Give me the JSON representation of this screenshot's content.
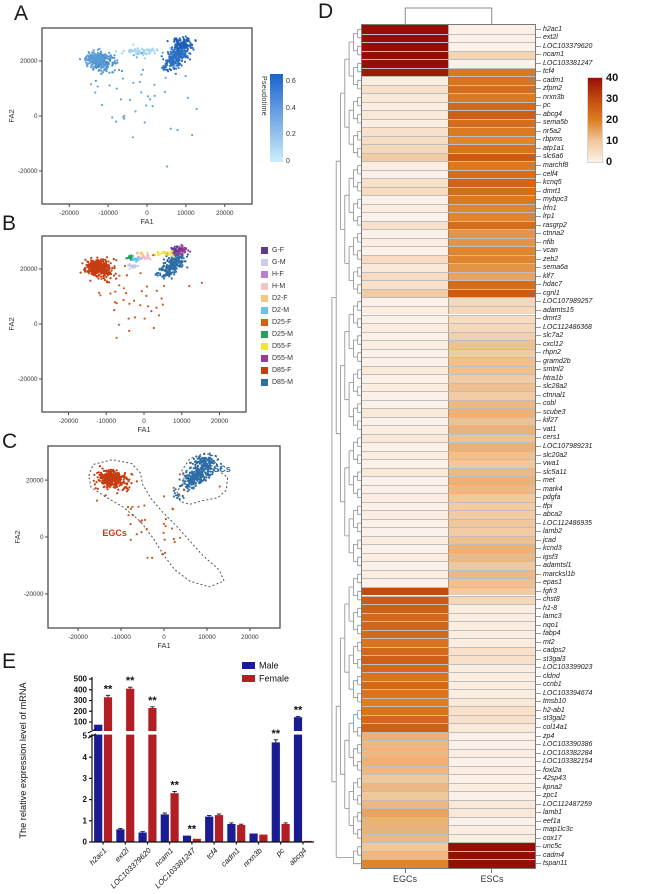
{
  "panels": {
    "A": {
      "label": "A"
    },
    "B": {
      "label": "B"
    },
    "C": {
      "label": "C"
    },
    "D": {
      "label": "D"
    },
    "E": {
      "label": "E"
    }
  },
  "chart_data": [
    {
      "id": "A",
      "type": "scatter",
      "title": "",
      "xlabel": "FA1",
      "ylabel": "FA2",
      "xlim": [
        -27000,
        27000
      ],
      "ylim": [
        -32000,
        32000
      ],
      "xticks": [
        -20000,
        -10000,
        0,
        10000,
        20000
      ],
      "yticks": [
        -20000,
        0,
        20000
      ],
      "seed": 7,
      "colorbar": {
        "title": "Pseudotime",
        "ticks": [
          "0.6",
          "0.4",
          "0.2",
          "0"
        ],
        "tick_values": [
          0.6,
          0.4,
          0.2,
          0
        ],
        "domain": [
          0,
          0.66
        ],
        "top": "#1a63cc",
        "bottom": "#cdeefb"
      },
      "clusters": [
        {
          "cx": -12500,
          "cy": 20500,
          "sx": 1500,
          "sy": 1300,
          "n": 320,
          "color": "#5b9bd5"
        },
        {
          "cx": -10500,
          "cy": 18200,
          "sx": 2000,
          "sy": 1500,
          "n": 45,
          "color": "#4a90d0"
        },
        {
          "cx": 7800,
          "cy": 21500,
          "sx": 1300,
          "sy": 2400,
          "slant": 0.45,
          "n": 240,
          "color": "#2a6fc2"
        },
        {
          "cx": 9200,
          "cy": 26300,
          "sx": 1400,
          "sy": 1100,
          "n": 90,
          "color": "#1d5fb5"
        },
        {
          "cx": -1500,
          "cy": 23400,
          "sx": 2200,
          "sy": 750,
          "n": 55,
          "color": "#9fd4f0"
        },
        {
          "cx": -2500,
          "cy": 7000,
          "sx": 6000,
          "sy": 8000,
          "n": 42,
          "color": "#5fa8e0"
        }
      ]
    },
    {
      "id": "B",
      "type": "scatter",
      "xlabel": "FA1",
      "ylabel": "FA2",
      "xlim": [
        -27000,
        27000
      ],
      "ylim": [
        -32000,
        32000
      ],
      "xticks": [
        -20000,
        -10000,
        0,
        10000,
        20000
      ],
      "yticks": [
        -20000,
        0,
        20000
      ],
      "seed": 11,
      "legend": [
        {
          "label": "G-F",
          "color": "#5c3b8f"
        },
        {
          "label": "G-M",
          "color": "#cfcbe6"
        },
        {
          "label": "H-F",
          "color": "#bd7ad6"
        },
        {
          "label": "H-M",
          "color": "#f2c4c4"
        },
        {
          "label": "D2-F",
          "color": "#f3c77f"
        },
        {
          "label": "D2-M",
          "color": "#66c5ef"
        },
        {
          "label": "D25-F",
          "color": "#d95f0e"
        },
        {
          "label": "D25-M",
          "color": "#28a05a"
        },
        {
          "label": "D55-F",
          "color": "#f2e338"
        },
        {
          "label": "D55-M",
          "color": "#9c3a98"
        },
        {
          "label": "D85-F",
          "color": "#c63d12"
        },
        {
          "label": "D85-M",
          "color": "#2e6da4"
        }
      ],
      "clusters": [
        {
          "cx": -12500,
          "cy": 20500,
          "sx": 1500,
          "sy": 1300,
          "n": 320,
          "color": "#c63d12"
        },
        {
          "cx": -10500,
          "cy": 18200,
          "sx": 2000,
          "sy": 1500,
          "n": 45,
          "color": "#c63d12"
        },
        {
          "cx": 7800,
          "cy": 21500,
          "sx": 1300,
          "sy": 2400,
          "slant": 0.45,
          "n": 240,
          "color": "#2e6da4"
        },
        {
          "cx": 9300,
          "cy": 26700,
          "sx": 1200,
          "sy": 800,
          "n": 55,
          "color": "#9c3a98"
        },
        {
          "cx": 8300,
          "cy": 27200,
          "sx": 900,
          "sy": 500,
          "n": 15,
          "color": "#5c3b8f"
        },
        {
          "cx": 5300,
          "cy": 25600,
          "sx": 1400,
          "sy": 650,
          "n": 22,
          "color": "#f2e338"
        },
        {
          "cx": -3600,
          "cy": 24300,
          "sx": 450,
          "sy": 350,
          "n": 14,
          "color": "#28a05a"
        },
        {
          "cx": -1900,
          "cy": 23700,
          "sx": 800,
          "sy": 400,
          "n": 22,
          "color": "#66c5ef"
        },
        {
          "cx": 300,
          "cy": 24500,
          "sx": 800,
          "sy": 420,
          "n": 22,
          "color": "#f0bac6"
        },
        {
          "cx": -2800,
          "cy": 20900,
          "sx": 800,
          "sy": 420,
          "n": 20,
          "color": "#c9c2e9"
        },
        {
          "cx": -700,
          "cy": 25700,
          "sx": 600,
          "sy": 300,
          "n": 10,
          "color": "#f3c77f"
        },
        {
          "cx": -2500,
          "cy": 7000,
          "sx": 6000,
          "sy": 8000,
          "n": 40,
          "color": "#d1561c"
        }
      ]
    },
    {
      "id": "C",
      "type": "scatter",
      "xlabel": "FA1",
      "ylabel": "FA2",
      "xlim": [
        -27000,
        27000
      ],
      "ylim": [
        -32000,
        32000
      ],
      "xticks": [
        -20000,
        -10000,
        0,
        10000,
        20000
      ],
      "yticks": [
        -20000,
        0,
        20000
      ],
      "seed": 23,
      "clusters": [
        {
          "cx": -12500,
          "cy": 20500,
          "sx": 1500,
          "sy": 1300,
          "n": 320,
          "color": "#c63d12"
        },
        {
          "cx": -10500,
          "cy": 18200,
          "sx": 2000,
          "sy": 1500,
          "n": 45,
          "color": "#c63d12"
        },
        {
          "cx": 7800,
          "cy": 21500,
          "sx": 1300,
          "sy": 2400,
          "slant": 0.45,
          "n": 240,
          "color": "#2e6da4"
        },
        {
          "cx": 9200,
          "cy": 26300,
          "sx": 1400,
          "sy": 1100,
          "n": 80,
          "color": "#2e6da4"
        },
        {
          "cx": 4000,
          "cy": 13500,
          "sx": 1500,
          "sy": 1200,
          "n": 8,
          "color": "#2e6da4"
        },
        {
          "cx": -2500,
          "cy": 7000,
          "sx": 6000,
          "sy": 8000,
          "n": 40,
          "color": "#d1561c"
        }
      ],
      "outlines": [
        {
          "name": "EGCs-outline",
          "points": [
            [
              -17500,
              21500
            ],
            [
              -16500,
              25500
            ],
            [
              -12000,
              27200
            ],
            [
              -7500,
              25800
            ],
            [
              -5500,
              22500
            ],
            [
              -5000,
              18500
            ],
            [
              -3000,
              13500
            ],
            [
              -500,
              9000
            ],
            [
              2500,
              4500
            ],
            [
              5500,
              -500
            ],
            [
              9000,
              -6500
            ],
            [
              12800,
              -11500
            ],
            [
              14000,
              -15500
            ],
            [
              10500,
              -17500
            ],
            [
              6000,
              -15500
            ],
            [
              2500,
              -11500
            ],
            [
              0,
              -6500
            ],
            [
              -2500,
              -500
            ],
            [
              -5500,
              5500
            ],
            [
              -9500,
              10500
            ],
            [
              -13500,
              14000
            ],
            [
              -17000,
              17500
            ]
          ]
        },
        {
          "name": "ESCs-outline",
          "points": [
            [
              3800,
              12500
            ],
            [
              3000,
              16000
            ],
            [
              4800,
              19500
            ],
            [
              4200,
              23500
            ],
            [
              6000,
              27500
            ],
            [
              9500,
              29500
            ],
            [
              12500,
              28000
            ],
            [
              12000,
              24000
            ],
            [
              14800,
              21000
            ],
            [
              14500,
              16500
            ],
            [
              12500,
              13800
            ],
            [
              9000,
              12800
            ],
            [
              6000,
              11500
            ]
          ]
        }
      ],
      "annotations": [
        {
          "text": "EGCs",
          "x": -11500,
          "y": 300,
          "color": "#c63d12"
        },
        {
          "text": "ESCs",
          "x": 12800,
          "y": 22800,
          "color": "#2e6da4"
        }
      ]
    },
    {
      "id": "D",
      "type": "heatmap",
      "columns": [
        "EGCs",
        "ESCs"
      ],
      "scale": {
        "ticks": [
          40,
          30,
          20,
          10,
          0
        ],
        "stops": [
          [
            0,
            "#fcf1e8"
          ],
          [
            10,
            "#f1c79c"
          ],
          [
            20,
            "#dd7e22"
          ],
          [
            30,
            "#c24a0e"
          ],
          [
            40,
            "#960f06"
          ]
        ]
      },
      "genes": [
        [
          "h2ac1",
          40,
          0
        ],
        [
          "ext2l",
          40,
          0
        ],
        [
          "LOC103379620",
          40,
          0
        ],
        [
          "ncam1",
          40,
          7
        ],
        [
          "LOC103381247",
          40,
          0
        ],
        [
          "tcf4",
          38,
          21
        ],
        [
          "cadm1",
          1,
          22
        ],
        [
          "zfpm2",
          4,
          23
        ],
        [
          "nrxn3b",
          2,
          21
        ],
        [
          "pc",
          1,
          24
        ],
        [
          "abcg4",
          2,
          26
        ],
        [
          "sema5b",
          1,
          23
        ],
        [
          "nr5a2",
          4,
          21
        ],
        [
          "rbpms",
          5,
          19
        ],
        [
          "atp1a1",
          6,
          22
        ],
        [
          "slc6a6",
          9,
          27
        ],
        [
          "marchf8",
          1,
          21
        ],
        [
          "celf4",
          0,
          23
        ],
        [
          "kcnq5",
          4,
          25
        ],
        [
          "dmrt1",
          5,
          23
        ],
        [
          "mybpc3",
          0,
          21
        ],
        [
          "lrfn1",
          1,
          19
        ],
        [
          "lrp1",
          0,
          19
        ],
        [
          "rasgrp2",
          4,
          23
        ],
        [
          "ctnna2",
          0,
          17
        ],
        [
          "nfib",
          1,
          17
        ],
        [
          "vcan",
          0,
          19
        ],
        [
          "zeb2",
          5,
          19
        ],
        [
          "sema6a",
          2,
          17
        ],
        [
          "klf7",
          5,
          15
        ],
        [
          "hdac7",
          4,
          23
        ],
        [
          "cgnl1",
          9,
          27
        ],
        [
          "LOC107989257",
          0,
          6
        ],
        [
          "adamts15",
          1,
          6
        ],
        [
          "dmrt3",
          0,
          5
        ],
        [
          "LOC112486368",
          1,
          6
        ],
        [
          "slc7a2",
          0,
          8
        ],
        [
          "cxcl12",
          1,
          11
        ],
        [
          "rhpn2",
          0,
          9
        ],
        [
          "gramd2b",
          0,
          11
        ],
        [
          "smtnl2",
          2,
          11
        ],
        [
          "htra1b",
          0,
          9
        ],
        [
          "slc28a2",
          1,
          11
        ],
        [
          "ctnnal1",
          0,
          9
        ],
        [
          "cobl",
          0,
          12
        ],
        [
          "scube3",
          2,
          13
        ],
        [
          "kif27",
          0,
          11
        ],
        [
          "vat1",
          1,
          13
        ],
        [
          "cers1",
          2,
          11
        ],
        [
          "LOC107989231",
          0,
          13
        ],
        [
          "slc20a2",
          1,
          11
        ],
        [
          "vwa1",
          0,
          10
        ],
        [
          "slc5a11",
          2,
          12
        ],
        [
          "met",
          0,
          13
        ],
        [
          "mark4",
          0,
          12
        ],
        [
          "pdgfa",
          1,
          10
        ],
        [
          "tfpi",
          0,
          9
        ],
        [
          "abca2",
          1,
          9
        ],
        [
          "LOC112486935",
          0,
          10
        ],
        [
          "lamb2",
          0,
          9
        ],
        [
          "jcad",
          1,
          11
        ],
        [
          "kcnd3",
          0,
          13
        ],
        [
          "igsf3",
          1,
          12
        ],
        [
          "adamtsl1",
          0,
          10
        ],
        [
          "marcksl1b",
          1,
          12
        ],
        [
          "epas1",
          0,
          11
        ],
        [
          "fgfr3",
          30,
          9
        ],
        [
          "chst8",
          27,
          6
        ],
        [
          "h1-8",
          26,
          1
        ],
        [
          "lamc3",
          24,
          1
        ],
        [
          "nqo1",
          25,
          1
        ],
        [
          "fabp4",
          24,
          1
        ],
        [
          "mt2",
          22,
          1
        ],
        [
          "cadps2",
          24,
          4
        ],
        [
          "st3gal3",
          26,
          4
        ],
        [
          "LOC103399023",
          24,
          1
        ],
        [
          "cldnd",
          22,
          1
        ],
        [
          "ccnb1",
          24,
          1
        ],
        [
          "LOC103394674",
          22,
          1
        ],
        [
          "tmsb10",
          20,
          2
        ],
        [
          "h2-ab1",
          22,
          4
        ],
        [
          "st3gal2",
          24,
          4
        ],
        [
          "col14a1",
          26,
          2
        ],
        [
          "zp4",
          13,
          0
        ],
        [
          "LOC103390386",
          12,
          0
        ],
        [
          "LOC103382284",
          12,
          1
        ],
        [
          "LOC103382154",
          13,
          0
        ],
        [
          "foxl2a",
          12,
          1
        ],
        [
          "42sp43",
          10,
          0
        ],
        [
          "kpna2",
          12,
          1
        ],
        [
          "zpc1",
          10,
          0
        ],
        [
          "LOC112487259",
          12,
          2
        ],
        [
          "lamb1",
          15,
          2
        ],
        [
          "eef1a",
          13,
          0
        ],
        [
          "map1lc3c",
          13,
          1
        ],
        [
          "cox17",
          12,
          1
        ],
        [
          "unc5c",
          10,
          40
        ],
        [
          "cadm4",
          12,
          40
        ],
        [
          "tspan11",
          19,
          40
        ]
      ]
    },
    {
      "id": "E",
      "type": "bar",
      "ylabel": "The relative expression level of mRNA",
      "categories": [
        "h2ac1",
        "ext2l",
        "LOC103379620",
        "ncam1",
        "LOC103381247",
        "tcf4",
        "cadm1",
        "nrxn3b",
        "pc",
        "abcg4"
      ],
      "series": [
        {
          "name": "Male",
          "color": "#1c1c92",
          "values": [
            75,
            0.6,
            0.45,
            1.3,
            0.3,
            1.2,
            0.85,
            0.4,
            4.7,
            145
          ],
          "errors": [
            5,
            0.04,
            0.04,
            0.07,
            0.03,
            0.05,
            0.05,
            0.03,
            0.12,
            7
          ]
        },
        {
          "name": "Female",
          "color": "#b11e23",
          "values": [
            330,
            410,
            230,
            2.3,
            0.15,
            1.27,
            0.8,
            0.35,
            0.85,
            0.05
          ],
          "errors": [
            18,
            14,
            11,
            0.08,
            0.02,
            0.05,
            0.04,
            0.03,
            0.05,
            0
          ]
        }
      ],
      "significance": [
        "female",
        "female",
        "female",
        "female",
        "pair",
        null,
        null,
        null,
        "male",
        "male"
      ],
      "significance_symbol": "**",
      "axis_break": {
        "lower": [
          0,
          5
        ],
        "lower_ticks": [
          0,
          1,
          2,
          3,
          4,
          5
        ],
        "upper": [
          100,
          500
        ],
        "upper_ticks": [
          100,
          200,
          300,
          400,
          500
        ]
      }
    }
  ]
}
